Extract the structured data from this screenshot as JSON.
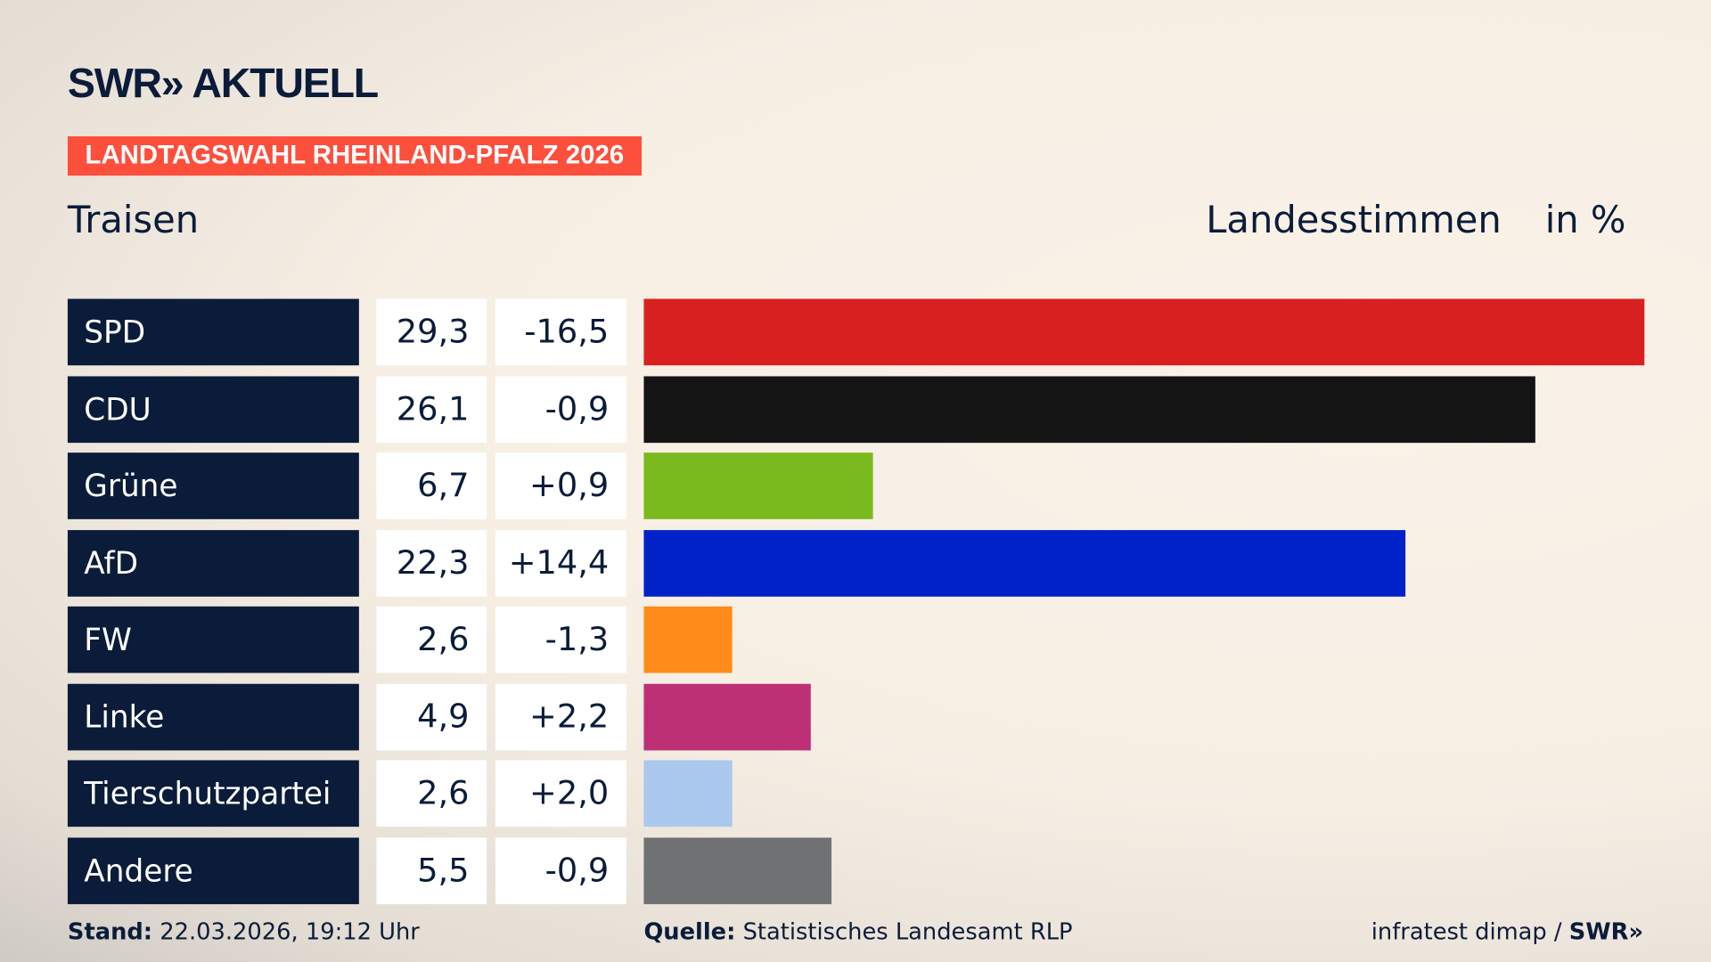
{
  "header": {
    "logo": "SWR» AKTUELL",
    "badge": "LANDTAGSWAHL RHEINLAND-PFALZ 2026",
    "region": "Traisen",
    "measure": "Landesstimmen",
    "unit": "in %"
  },
  "chart_data": {
    "type": "bar",
    "orientation": "horizontal",
    "categories": [
      "SPD",
      "CDU",
      "Grüne",
      "AfD",
      "FW",
      "Linke",
      "Tierschutzpartei",
      "Andere"
    ],
    "values": [
      29.3,
      26.1,
      6.7,
      22.3,
      2.6,
      4.9,
      2.6,
      5.5
    ],
    "value_labels": [
      "29,3",
      "26,1",
      "6,7",
      "22,3",
      "2,6",
      "4,9",
      "2,6",
      "5,5"
    ],
    "diff_labels": [
      "-16,5",
      "-0,9",
      "+0,9",
      "+14,4",
      "-1,3",
      "+2,2",
      "+2,0",
      "-0,9"
    ],
    "colors": [
      "#d82020",
      "#141414",
      "#7aba1e",
      "#0022c8",
      "#fe8b1a",
      "#bd3075",
      "#abc8ee",
      "#707173"
    ],
    "xlim": [
      0,
      29.3
    ]
  },
  "footer": {
    "stand_label": "Stand:",
    "stand": "22.03.2026, 19:12 Uhr",
    "source_label": "Quelle:",
    "source": "Statistisches Landesamt RLP",
    "credit": "infratest dimap / ",
    "credit_logo": "SWR»"
  }
}
